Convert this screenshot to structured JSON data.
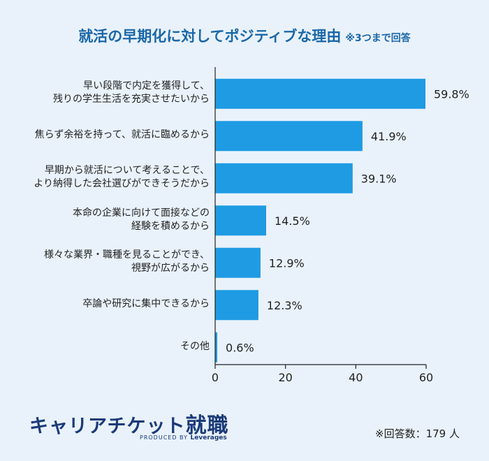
{
  "header": {
    "title": "就活の早期化に対してポジティブな理由",
    "note": "※3つまで回答"
  },
  "footer": {
    "brand_main": "キャリアチケット",
    "brand_accent": "就職",
    "produced_by": "PRODUCED BY",
    "produced_company": "Leverages",
    "respondents": "※回答数：179 人"
  },
  "colors": {
    "bar": "#1e9be3",
    "title": "#1a67a8",
    "background": "#e9f2fb"
  },
  "chart_data": {
    "type": "bar",
    "orientation": "horizontal",
    "categories": [
      [
        "早い段階で内定を獲得して、",
        "残りの学生生活を充実させたいから"
      ],
      [
        "焦らず余裕を持って、就活に臨めるから"
      ],
      [
        "早期から就活について考えることで、",
        "より納得した会社選びができそうだから"
      ],
      [
        "本命の企業に向けて面接などの",
        "経験を積めるから"
      ],
      [
        "様々な業界・職種を見ることができ、",
        "視野が広がるから"
      ],
      [
        "卒論や研究に集中できるから"
      ],
      [
        "その他"
      ]
    ],
    "values": [
      59.8,
      41.9,
      39.1,
      14.5,
      12.9,
      12.3,
      0.6
    ],
    "value_labels": [
      "59.8%",
      "41.9%",
      "39.1%",
      "14.5%",
      "12.9%",
      "12.3%",
      "0.6%"
    ],
    "xlim": [
      0,
      60
    ],
    "xticks": [
      0,
      20,
      40,
      60
    ],
    "grid": false
  }
}
